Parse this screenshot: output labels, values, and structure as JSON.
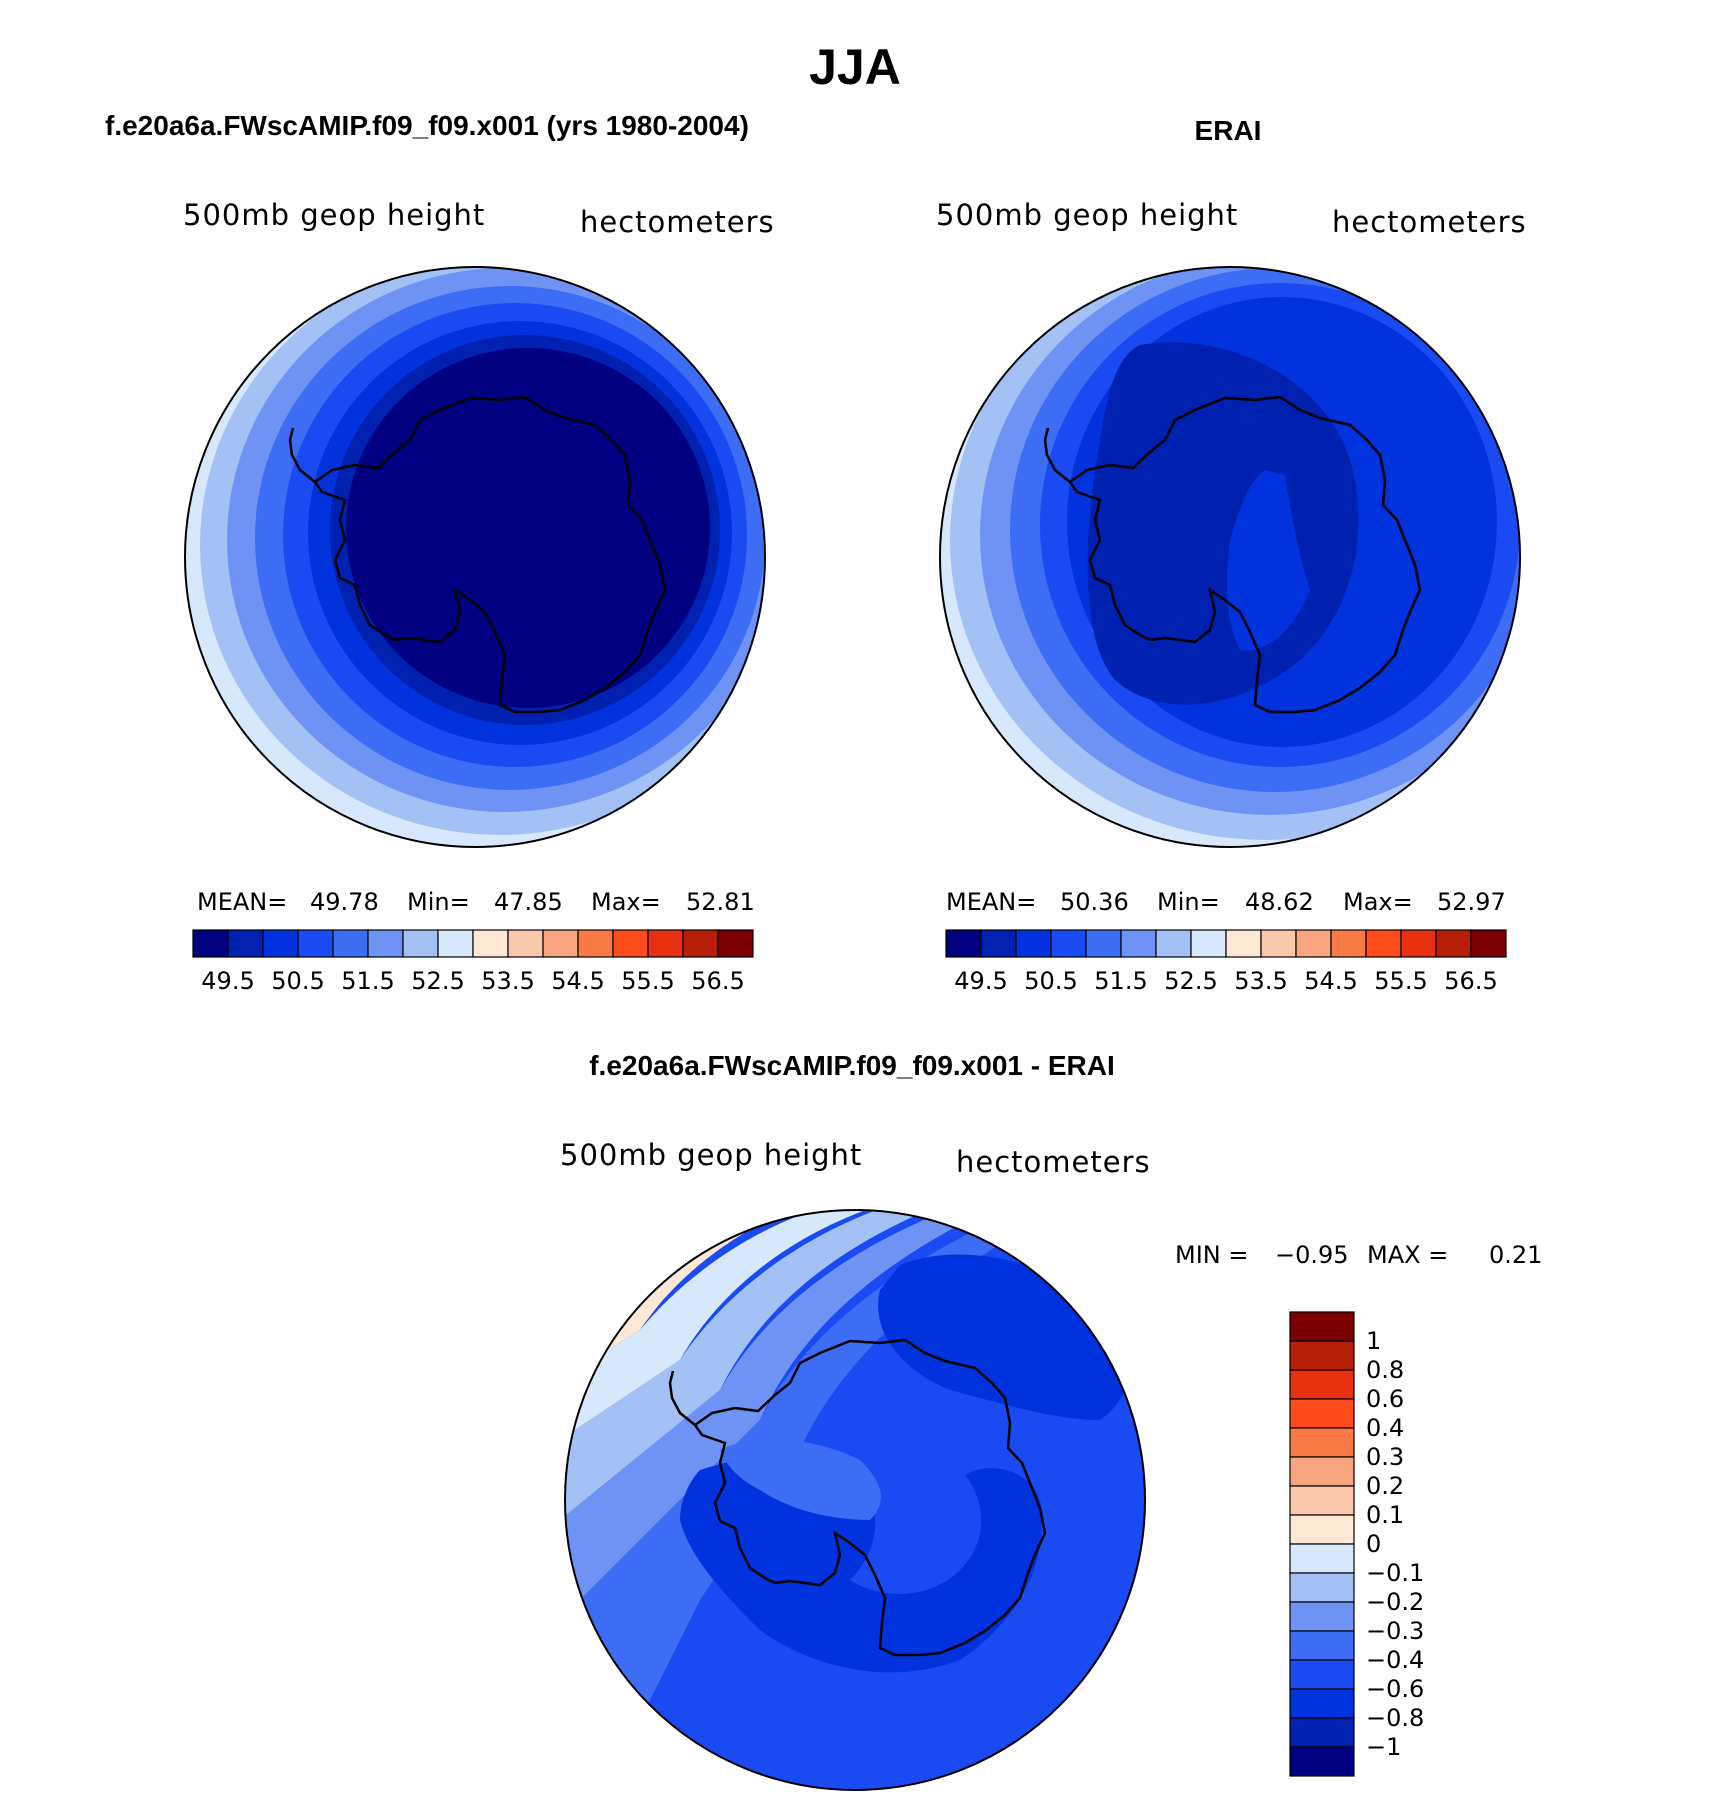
{
  "figure": {
    "title": "JJA",
    "colors": {
      "full_scale": [
        "#000080",
        "#0020b0",
        "#0033dd",
        "#1a4bf2",
        "#3d6cf5",
        "#6f93f4",
        "#a4c1f6",
        "#d8e8fc",
        "#fde7d5",
        "#fbc8ae",
        "#f9a57f",
        "#f97a47",
        "#ff4c1c",
        "#e63010",
        "#b81f08",
        "#7d0000"
      ],
      "diff_scale": [
        "#000080",
        "#0020b0",
        "#0033dd",
        "#1a4bf2",
        "#3d6cf5",
        "#6f93f4",
        "#a4c1f6",
        "#d8e8fc",
        "#fde7d5",
        "#fbc8ae",
        "#f9a57f",
        "#f97a47",
        "#ff4c1c",
        "#e63010",
        "#b81f08",
        "#7d0000"
      ],
      "coast": "#000000"
    }
  },
  "chart_data": [
    {
      "type": "heatmap",
      "projection": "south-polar-stereographic",
      "title": "f.e20a6a.FWscAMIP.f09_f09.x001 (yrs 1980-2004)",
      "subtitle_left": "500mb geop height",
      "subtitle_right": "hectometers",
      "stats": {
        "mean_label": "MEAN=",
        "mean": "49.78",
        "min_label": "Min=",
        "min": "47.85",
        "max_label": "Max=",
        "max": "52.81"
      },
      "colorbar_ticks": [
        "49.5",
        "50.5",
        "51.5",
        "52.5",
        "53.5",
        "54.5",
        "55.5",
        "56.5"
      ],
      "levels": [
        49.0,
        49.5,
        50.0,
        50.5,
        51.0,
        51.5,
        52.0,
        52.5,
        53.0,
        53.5,
        54.0,
        54.5,
        55.0,
        55.5,
        56.0,
        56.5
      ]
    },
    {
      "type": "heatmap",
      "projection": "south-polar-stereographic",
      "title": "ERAI",
      "subtitle_left": "500mb geop height",
      "subtitle_right": "hectometers",
      "stats": {
        "mean_label": "MEAN=",
        "mean": "50.36",
        "min_label": "Min=",
        "min": "48.62",
        "max_label": "Max=",
        "max": "52.97"
      },
      "colorbar_ticks": [
        "49.5",
        "50.5",
        "51.5",
        "52.5",
        "53.5",
        "54.5",
        "55.5",
        "56.5"
      ],
      "levels": [
        49.0,
        49.5,
        50.0,
        50.5,
        51.0,
        51.5,
        52.0,
        52.5,
        53.0,
        53.5,
        54.0,
        54.5,
        55.0,
        55.5,
        56.0,
        56.5
      ]
    },
    {
      "type": "heatmap",
      "projection": "south-polar-stereographic",
      "title": "f.e20a6a.FWscAMIP.f09_f09.x001 - ERAI",
      "subtitle_left": "500mb geop height",
      "subtitle_right": "hectometers",
      "stats": {
        "min_label": "MIN =",
        "min": "−0.95",
        "max_label": "MAX =",
        "max": "0.21"
      },
      "colorbar_ticks": [
        "1",
        "0.8",
        "0.6",
        "0.4",
        "0.3",
        "0.2",
        "0.1",
        "0",
        "−0.1",
        "−0.2",
        "−0.3",
        "−0.4",
        "−0.6",
        "−0.8",
        "−1"
      ]
    }
  ]
}
